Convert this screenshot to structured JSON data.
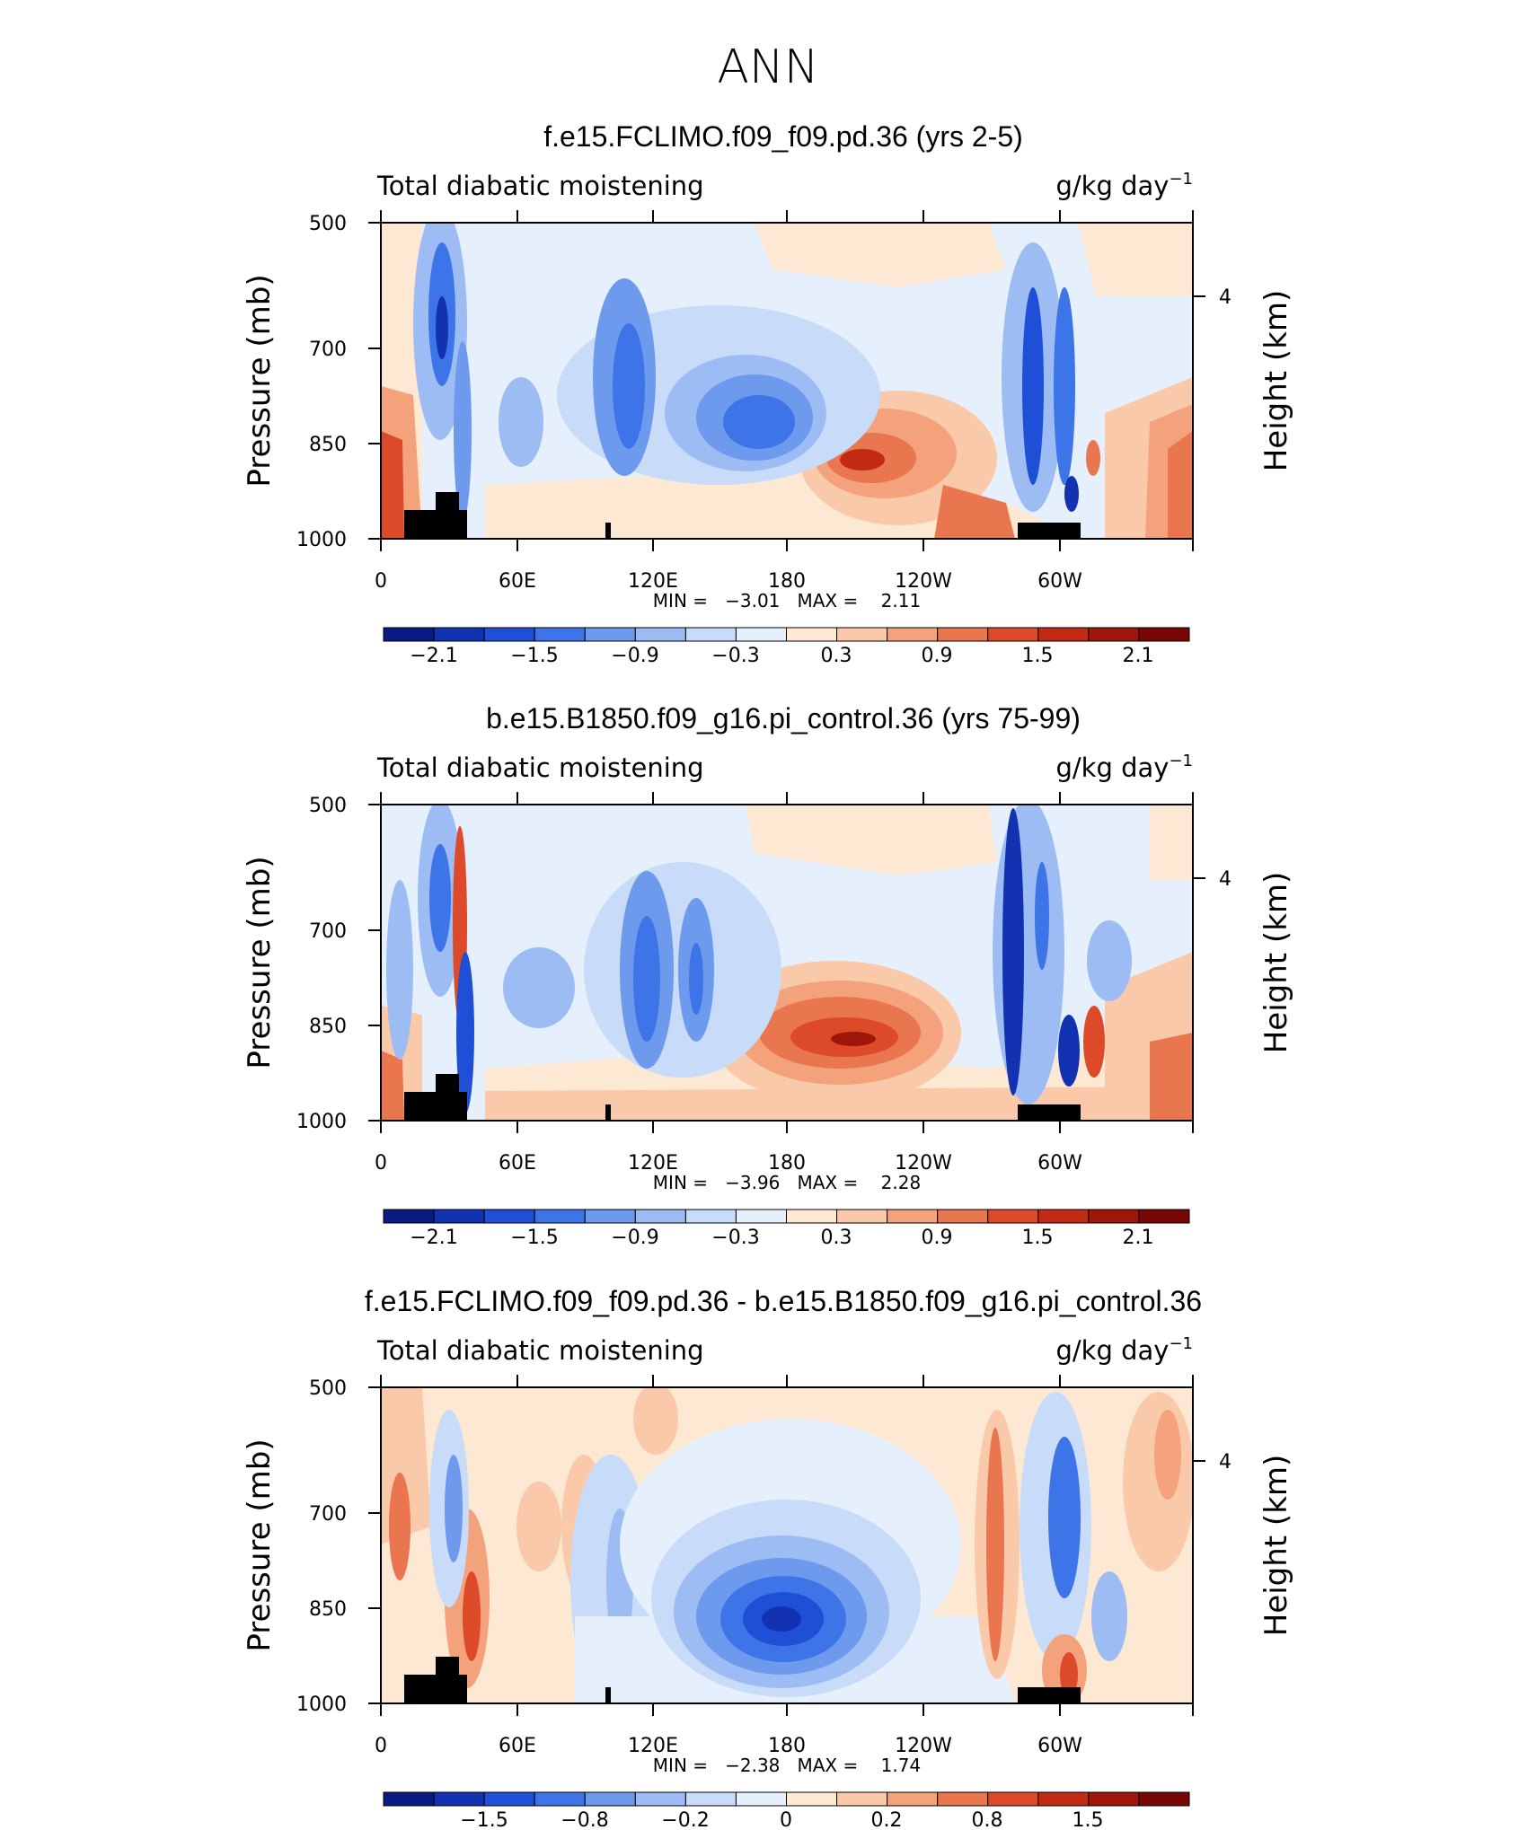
{
  "figure": {
    "title": "ANN"
  },
  "chart_data": [
    {
      "type": "heatmap",
      "title": "f.e15.FCLIMO.f09_f09.pd.36 (yrs 2-5)",
      "subtitle_left": "Total diabatic moistening",
      "units": "g/kg day",
      "units_exp": "−1",
      "ylabel": "Pressure (mb)",
      "ylabel_right": "Height (km)",
      "x_ticks": [
        "0",
        "60E",
        "120E",
        "180",
        "120W",
        "60W"
      ],
      "y_ticks": [
        "500",
        "700",
        "850",
        "1000"
      ],
      "right_ticks": [
        "4"
      ],
      "stats": "MIN =   −3.01   MAX =    2.11",
      "colorbar_labels": [
        "−2.1",
        "−1.5",
        "−0.9",
        "−0.3",
        "0.3",
        "0.9",
        "1.5",
        "2.1"
      ],
      "min": -3.01,
      "max": 2.11,
      "ylim": [
        1000,
        500
      ]
    },
    {
      "type": "heatmap",
      "title": "b.e15.B1850.f09_g16.pi_control.36 (yrs 75-99)",
      "subtitle_left": "Total diabatic moistening",
      "units": "g/kg day",
      "units_exp": "−1",
      "ylabel": "Pressure (mb)",
      "ylabel_right": "Height (km)",
      "x_ticks": [
        "0",
        "60E",
        "120E",
        "180",
        "120W",
        "60W"
      ],
      "y_ticks": [
        "500",
        "700",
        "850",
        "1000"
      ],
      "right_ticks": [
        "4"
      ],
      "stats": "MIN =   −3.96   MAX =    2.28",
      "colorbar_labels": [
        "−2.1",
        "−1.5",
        "−0.9",
        "−0.3",
        "0.3",
        "0.9",
        "1.5",
        "2.1"
      ],
      "min": -3.96,
      "max": 2.28,
      "ylim": [
        1000,
        500
      ]
    },
    {
      "type": "heatmap",
      "title": "f.e15.FCLIMO.f09_f09.pd.36 - b.e15.B1850.f09_g16.pi_control.36",
      "subtitle_left": "Total diabatic moistening",
      "units": "g/kg day",
      "units_exp": "−1",
      "ylabel": "Pressure (mb)",
      "ylabel_right": "Height (km)",
      "x_ticks": [
        "0",
        "60E",
        "120E",
        "180",
        "120W",
        "60W"
      ],
      "y_ticks": [
        "500",
        "700",
        "850",
        "1000"
      ],
      "right_ticks": [
        "4"
      ],
      "stats": "MIN =   −2.38   MAX =    1.74",
      "colorbar_labels": [
        "−1.5",
        "−0.8",
        "−0.2",
        "0",
        "0.2",
        "0.8",
        "1.5"
      ],
      "min": -2.38,
      "max": 1.74,
      "ylim": [
        1000,
        500
      ]
    }
  ],
  "colors": {
    "colorbar": [
      "#0a1a82",
      "#1232b2",
      "#1f4fd6",
      "#3d74e8",
      "#6e9aee",
      "#9dbcf4",
      "#c8dbf8",
      "#e6f0fc",
      "#fde8d4",
      "#fac9aa",
      "#f4a27c",
      "#ea7650",
      "#dc4a2a",
      "#c22a14",
      "#9e150a",
      "#780808"
    ],
    "land": "#000000",
    "background": "#ffffff"
  }
}
